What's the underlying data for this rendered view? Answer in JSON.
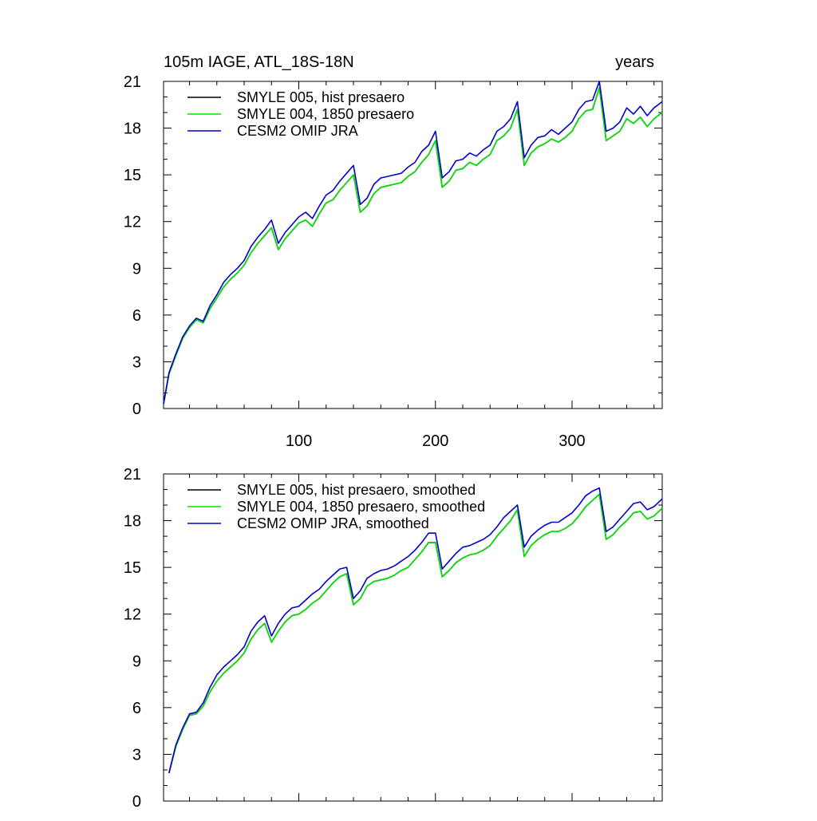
{
  "chart_data": [
    {
      "type": "line",
      "title": "105m IAGE, ATL_18S-18N",
      "units_label": "years",
      "xlim": [
        1,
        366
      ],
      "ylim": [
        0,
        21
      ],
      "x_ticks": [
        100,
        200,
        300
      ],
      "y_ticks": [
        0,
        3,
        6,
        9,
        12,
        15,
        18,
        21
      ],
      "x_tick_labels": [
        "100",
        "200",
        "300"
      ],
      "y_tick_labels": [
        "0",
        "3",
        "6",
        "9",
        "12",
        "15",
        "18",
        "21"
      ],
      "legend": [
        "SMYLE 005, hist presaero",
        "SMYLE 004, 1850 presaero",
        "CESM2 OMIP JRA"
      ],
      "legend_position": "top-left",
      "series": [
        {
          "name": "SMYLE 005, hist presaero",
          "color": "#000000",
          "x": [
            1,
            5,
            10,
            15,
            20,
            25,
            30,
            35,
            40,
            45,
            50,
            55,
            60,
            65,
            70,
            75,
            80,
            85,
            90,
            95,
            100,
            105,
            110,
            115,
            120,
            125,
            130,
            135,
            140,
            145,
            150,
            155,
            160,
            165,
            170,
            175,
            180,
            185,
            190,
            195,
            200,
            205,
            210,
            215,
            220,
            225,
            230,
            235,
            240,
            245,
            250,
            255,
            260,
            265,
            270,
            275,
            280,
            285,
            290,
            295,
            300,
            305,
            310,
            315,
            320,
            325,
            330,
            335,
            340,
            345,
            350,
            355,
            360,
            366
          ],
          "y": [
            0.3,
            2.2,
            3.4,
            4.5,
            5.2,
            5.7,
            5.5,
            6.4,
            7.1,
            7.8,
            8.3,
            8.7,
            9.2,
            10.0,
            10.6,
            11.1,
            11.6,
            10.2,
            10.9,
            11.4,
            11.9,
            12.1,
            11.7,
            12.5,
            13.2,
            13.4,
            14.0,
            14.5,
            15.0,
            12.6,
            13.0,
            13.8,
            14.2,
            14.3,
            14.4,
            14.5,
            14.9,
            15.2,
            15.8,
            16.3,
            17.2,
            14.2,
            14.6,
            15.3,
            15.4,
            15.8,
            15.6,
            16.0,
            16.3,
            17.2,
            17.5,
            18.0,
            19.2,
            15.6,
            16.4,
            16.8,
            17.0,
            17.3,
            17.1,
            17.4,
            17.8,
            18.6,
            19.1,
            19.2,
            20.6,
            17.2,
            17.5,
            17.8,
            18.6,
            18.3,
            18.7,
            18.1,
            18.6,
            19.0
          ]
        },
        {
          "name": "SMYLE 004, 1850 presaero",
          "color": "#00e600",
          "x": [
            1,
            5,
            10,
            15,
            20,
            25,
            30,
            35,
            40,
            45,
            50,
            55,
            60,
            65,
            70,
            75,
            80,
            85,
            90,
            95,
            100,
            105,
            110,
            115,
            120,
            125,
            130,
            135,
            140,
            145,
            150,
            155,
            160,
            165,
            170,
            175,
            180,
            185,
            190,
            195,
            200,
            205,
            210,
            215,
            220,
            225,
            230,
            235,
            240,
            245,
            250,
            255,
            260,
            265,
            270,
            275,
            280,
            285,
            290,
            295,
            300,
            305,
            310,
            315,
            320,
            325,
            330,
            335,
            340,
            345,
            350,
            355,
            360,
            366
          ],
          "y": [
            0.3,
            2.2,
            3.4,
            4.5,
            5.2,
            5.7,
            5.5,
            6.4,
            7.1,
            7.8,
            8.3,
            8.7,
            9.2,
            10.0,
            10.6,
            11.1,
            11.6,
            10.2,
            10.9,
            11.4,
            11.9,
            12.1,
            11.7,
            12.5,
            13.2,
            13.4,
            14.0,
            14.5,
            15.0,
            12.6,
            13.0,
            13.8,
            14.2,
            14.3,
            14.4,
            14.5,
            14.9,
            15.2,
            15.8,
            16.3,
            17.2,
            14.2,
            14.6,
            15.3,
            15.4,
            15.8,
            15.6,
            16.0,
            16.3,
            17.2,
            17.5,
            18.0,
            19.2,
            15.6,
            16.4,
            16.8,
            17.0,
            17.3,
            17.1,
            17.4,
            17.8,
            18.6,
            19.1,
            19.2,
            20.6,
            17.2,
            17.5,
            17.8,
            18.6,
            18.3,
            18.7,
            18.1,
            18.6,
            19.0
          ]
        },
        {
          "name": "CESM2 OMIP JRA",
          "color": "#0000cc",
          "x": [
            1,
            5,
            10,
            15,
            20,
            25,
            30,
            35,
            40,
            45,
            50,
            55,
            60,
            65,
            70,
            75,
            80,
            85,
            90,
            95,
            100,
            105,
            110,
            115,
            120,
            125,
            130,
            135,
            140,
            145,
            150,
            155,
            160,
            165,
            170,
            175,
            180,
            185,
            190,
            195,
            200,
            205,
            210,
            215,
            220,
            225,
            230,
            235,
            240,
            245,
            250,
            255,
            260,
            265,
            270,
            275,
            280,
            285,
            290,
            295,
            300,
            305,
            310,
            315,
            320,
            325,
            330,
            335,
            340,
            345,
            350,
            355,
            360,
            366
          ],
          "y": [
            0.3,
            2.3,
            3.5,
            4.6,
            5.3,
            5.8,
            5.6,
            6.6,
            7.3,
            8.1,
            8.6,
            9.0,
            9.5,
            10.4,
            11.0,
            11.5,
            12.1,
            10.6,
            11.3,
            11.8,
            12.3,
            12.6,
            12.2,
            13.0,
            13.7,
            14.0,
            14.6,
            15.1,
            15.6,
            13.1,
            13.5,
            14.4,
            14.8,
            14.9,
            15.0,
            15.1,
            15.5,
            15.8,
            16.5,
            16.9,
            17.8,
            14.8,
            15.2,
            15.9,
            16.0,
            16.4,
            16.2,
            16.6,
            16.9,
            17.8,
            18.1,
            18.6,
            19.7,
            16.1,
            16.9,
            17.4,
            17.5,
            17.9,
            17.6,
            18.0,
            18.4,
            19.2,
            19.7,
            19.8,
            21.0,
            17.8,
            18.0,
            18.4,
            19.3,
            18.9,
            19.4,
            18.8,
            19.3,
            19.7
          ]
        }
      ]
    },
    {
      "type": "line",
      "title": "",
      "units_label": "",
      "xlim": [
        1,
        366
      ],
      "ylim": [
        0,
        21
      ],
      "x_ticks": [
        100,
        200,
        300
      ],
      "y_ticks": [
        0,
        3,
        6,
        9,
        12,
        15,
        18,
        21
      ],
      "x_tick_labels": [],
      "y_tick_labels": [
        "0",
        "3",
        "6",
        "9",
        "12",
        "15",
        "18",
        "21"
      ],
      "legend": [
        "SMYLE 005, hist presaero, smoothed",
        "SMYLE 004, 1850 presaero, smoothed",
        "CESM2 OMIP JRA, smoothed"
      ],
      "legend_position": "top-left",
      "series": [
        {
          "name": "SMYLE 005, hist presaero, smoothed",
          "color": "#000000",
          "x": [
            5,
            10,
            15,
            20,
            25,
            30,
            35,
            40,
            45,
            50,
            55,
            60,
            65,
            70,
            75,
            80,
            85,
            90,
            95,
            100,
            105,
            110,
            115,
            120,
            125,
            130,
            135,
            140,
            145,
            150,
            155,
            160,
            165,
            170,
            175,
            180,
            185,
            190,
            195,
            200,
            205,
            210,
            215,
            220,
            225,
            230,
            235,
            240,
            245,
            250,
            255,
            260,
            265,
            270,
            275,
            280,
            285,
            290,
            295,
            300,
            305,
            310,
            315,
            320,
            325,
            330,
            335,
            340,
            345,
            350,
            355,
            360,
            366
          ],
          "y": [
            1.8,
            3.5,
            4.6,
            5.5,
            5.6,
            6.1,
            7.0,
            7.7,
            8.2,
            8.6,
            9.0,
            9.5,
            10.4,
            11.0,
            11.4,
            10.2,
            10.9,
            11.5,
            11.9,
            12.0,
            12.3,
            12.7,
            13.0,
            13.5,
            14.0,
            14.4,
            14.6,
            12.6,
            13.0,
            13.8,
            14.1,
            14.2,
            14.3,
            14.5,
            14.8,
            15.0,
            15.5,
            16.0,
            16.6,
            16.6,
            14.4,
            14.8,
            15.3,
            15.6,
            15.8,
            15.9,
            16.1,
            16.4,
            17.0,
            17.5,
            18.0,
            18.7,
            15.7,
            16.4,
            16.8,
            17.1,
            17.3,
            17.3,
            17.5,
            17.8,
            18.3,
            18.9,
            19.3,
            19.7,
            16.8,
            17.1,
            17.6,
            18.0,
            18.5,
            18.6,
            18.1,
            18.3,
            18.8
          ]
        },
        {
          "name": "SMYLE 004, 1850 presaero, smoothed",
          "color": "#00e600",
          "x": [
            5,
            10,
            15,
            20,
            25,
            30,
            35,
            40,
            45,
            50,
            55,
            60,
            65,
            70,
            75,
            80,
            85,
            90,
            95,
            100,
            105,
            110,
            115,
            120,
            125,
            130,
            135,
            140,
            145,
            150,
            155,
            160,
            165,
            170,
            175,
            180,
            185,
            190,
            195,
            200,
            205,
            210,
            215,
            220,
            225,
            230,
            235,
            240,
            245,
            250,
            255,
            260,
            265,
            270,
            275,
            280,
            285,
            290,
            295,
            300,
            305,
            310,
            315,
            320,
            325,
            330,
            335,
            340,
            345,
            350,
            355,
            360,
            366
          ],
          "y": [
            1.8,
            3.5,
            4.6,
            5.5,
            5.6,
            6.1,
            7.0,
            7.7,
            8.2,
            8.6,
            9.0,
            9.5,
            10.4,
            11.0,
            11.4,
            10.2,
            10.9,
            11.5,
            11.9,
            12.0,
            12.3,
            12.7,
            13.0,
            13.5,
            14.0,
            14.4,
            14.6,
            12.6,
            13.0,
            13.8,
            14.1,
            14.2,
            14.3,
            14.5,
            14.8,
            15.0,
            15.5,
            16.0,
            16.6,
            16.6,
            14.4,
            14.8,
            15.3,
            15.6,
            15.8,
            15.9,
            16.1,
            16.4,
            17.0,
            17.5,
            18.0,
            18.7,
            15.7,
            16.4,
            16.8,
            17.1,
            17.3,
            17.3,
            17.5,
            17.8,
            18.3,
            18.9,
            19.3,
            19.7,
            16.8,
            17.1,
            17.6,
            18.0,
            18.5,
            18.6,
            18.1,
            18.3,
            18.8
          ]
        },
        {
          "name": "CESM2 OMIP JRA, smoothed",
          "color": "#0000cc",
          "x": [
            5,
            10,
            15,
            20,
            25,
            30,
            35,
            40,
            45,
            50,
            55,
            60,
            65,
            70,
            75,
            80,
            85,
            90,
            95,
            100,
            105,
            110,
            115,
            120,
            125,
            130,
            135,
            140,
            145,
            150,
            155,
            160,
            165,
            170,
            175,
            180,
            185,
            190,
            195,
            200,
            205,
            210,
            215,
            220,
            225,
            230,
            235,
            240,
            245,
            250,
            255,
            260,
            265,
            270,
            275,
            280,
            285,
            290,
            295,
            300,
            305,
            310,
            315,
            320,
            325,
            330,
            335,
            340,
            345,
            350,
            355,
            360,
            366
          ],
          "y": [
            1.8,
            3.6,
            4.7,
            5.6,
            5.7,
            6.3,
            7.3,
            8.1,
            8.6,
            9.0,
            9.4,
            9.9,
            10.9,
            11.5,
            11.9,
            10.6,
            11.4,
            12.0,
            12.4,
            12.5,
            12.9,
            13.3,
            13.6,
            14.1,
            14.5,
            14.9,
            15.0,
            13.0,
            13.5,
            14.3,
            14.6,
            14.8,
            14.9,
            15.1,
            15.4,
            15.7,
            16.1,
            16.6,
            17.2,
            17.2,
            14.9,
            15.4,
            15.9,
            16.3,
            16.4,
            16.6,
            16.8,
            17.1,
            17.6,
            18.2,
            18.6,
            19.0,
            16.3,
            17.0,
            17.4,
            17.7,
            17.9,
            17.9,
            18.2,
            18.5,
            19.0,
            19.6,
            19.9,
            20.1,
            17.3,
            17.6,
            18.1,
            18.6,
            19.1,
            19.2,
            18.7,
            18.9,
            19.4
          ]
        }
      ]
    }
  ]
}
